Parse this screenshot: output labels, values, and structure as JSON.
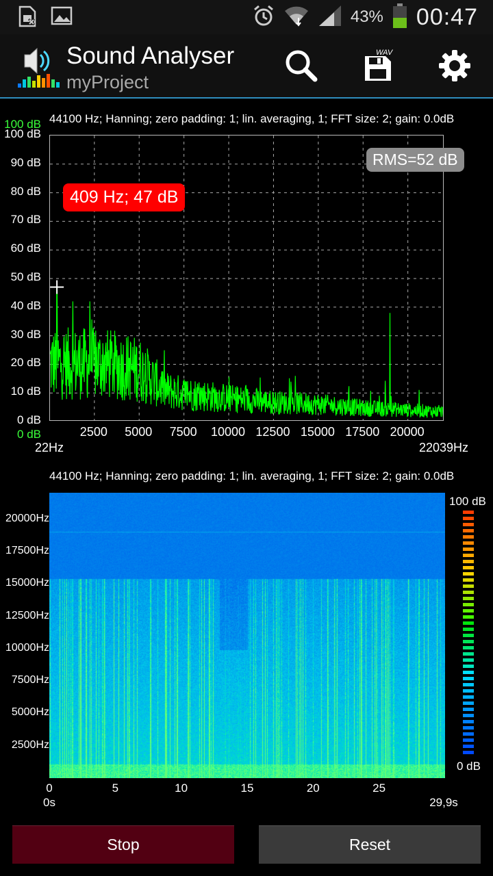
{
  "status_bar": {
    "battery_percent": "43%",
    "time": "00:47",
    "icons": [
      "sim-card-icon",
      "image-icon",
      "alarm-icon",
      "wifi-icon",
      "signal-icon",
      "battery-icon"
    ]
  },
  "action_bar": {
    "title": "Sound Analyser",
    "subtitle": "myProject",
    "wav_label": "WAV",
    "icons": [
      "search-icon",
      "save-wav-icon",
      "settings-icon"
    ]
  },
  "spectrum": {
    "info": "44100 Hz; Hanning; zero padding: 1; lin. averaging, 1; FFT size: 2; gain: 0.0dB",
    "y_top_green": "100 dB",
    "y_bottom_green": "0 dB",
    "y_labels": [
      "100 dB",
      "90 dB",
      "80 dB",
      "70 dB",
      "60 dB",
      "50 dB",
      "40 dB",
      "30 dB",
      "20 dB",
      "10 dB",
      "0 dB"
    ],
    "x_labels": [
      "2500",
      "5000",
      "7500",
      "10000",
      "12500",
      "15000",
      "17500",
      "20000"
    ],
    "x_min_label": "22Hz",
    "x_max_label": "22039Hz",
    "rms": "RMS=52 dB",
    "peak": "409 Hz; 47 dB",
    "peak_marker": {
      "freq_hz": 409,
      "db": 47
    },
    "line_color": "#00ff00"
  },
  "chart_data": {
    "type": "line",
    "x_range_hz": [
      22,
      22039
    ],
    "ylim": [
      0,
      100
    ],
    "peak_hz": 409,
    "peak_db": 47,
    "spikes": [
      {
        "x_hz": 409,
        "db": 47
      },
      {
        "x_hz": 1300,
        "db": 42
      },
      {
        "x_hz": 2250,
        "db": 42
      },
      {
        "x_hz": 19000,
        "db": 38
      }
    ],
    "envelope": [
      {
        "x_hz": 22,
        "db": 30
      },
      {
        "x_hz": 1000,
        "db": 30
      },
      {
        "x_hz": 3000,
        "db": 30
      },
      {
        "x_hz": 5000,
        "db": 27
      },
      {
        "x_hz": 6500,
        "db": 16
      },
      {
        "x_hz": 8000,
        "db": 14
      },
      {
        "x_hz": 10000,
        "db": 12
      },
      {
        "x_hz": 12500,
        "db": 10
      },
      {
        "x_hz": 15000,
        "db": 9
      },
      {
        "x_hz": 17500,
        "db": 7
      },
      {
        "x_hz": 20000,
        "db": 6
      },
      {
        "x_hz": 22039,
        "db": 5
      }
    ]
  },
  "spectrogram": {
    "info": "44100 Hz; Hanning; zero padding: 1; lin. averaging, 1; FFT size: 2; gain: 0.0dB",
    "y_labels": [
      "20000Hz",
      "17500Hz",
      "15000Hz",
      "12500Hz",
      "10000Hz",
      "7500Hz",
      "5000Hz",
      "2500Hz"
    ],
    "x_labels": [
      "0",
      "5",
      "10",
      "15",
      "20",
      "25"
    ],
    "time_start": "0s",
    "time_end": "29,9s",
    "colorbar_top": "100 dB",
    "colorbar_bottom": "0 dB"
  },
  "buttons": {
    "stop": "Stop",
    "reset": "Reset"
  }
}
